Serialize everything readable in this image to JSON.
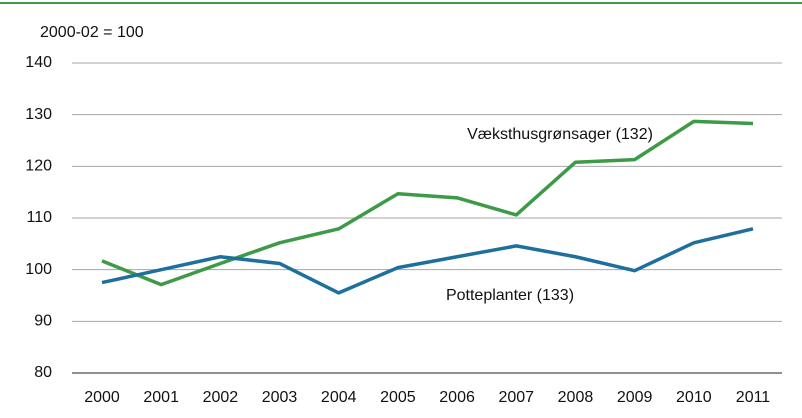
{
  "chart_data": {
    "type": "line",
    "ylabel": "2000-02 = 100",
    "categories": [
      "2000",
      "2001",
      "2002",
      "2003",
      "2004",
      "2005",
      "2006",
      "2007",
      "2008",
      "2009",
      "2010",
      "2011"
    ],
    "series": [
      {
        "name": "Væksthusgrønsager (132)",
        "color": "#3d9a46",
        "values": [
          101.7,
          97.1,
          101.2,
          105.2,
          107.9,
          114.7,
          113.9,
          110.6,
          120.8,
          121.3,
          128.7,
          128.3
        ]
      },
      {
        "name": "Potteplanter (133)",
        "color": "#1f6f9e",
        "values": [
          97.5,
          100,
          102.5,
          101.2,
          95.5,
          100.4,
          102.5,
          104.6,
          102.5,
          99.8,
          105.2,
          107.9
        ]
      }
    ],
    "ylim": [
      80,
      140
    ],
    "yticks": [
      80,
      90,
      100,
      110,
      120,
      130,
      140
    ],
    "grid": true
  }
}
